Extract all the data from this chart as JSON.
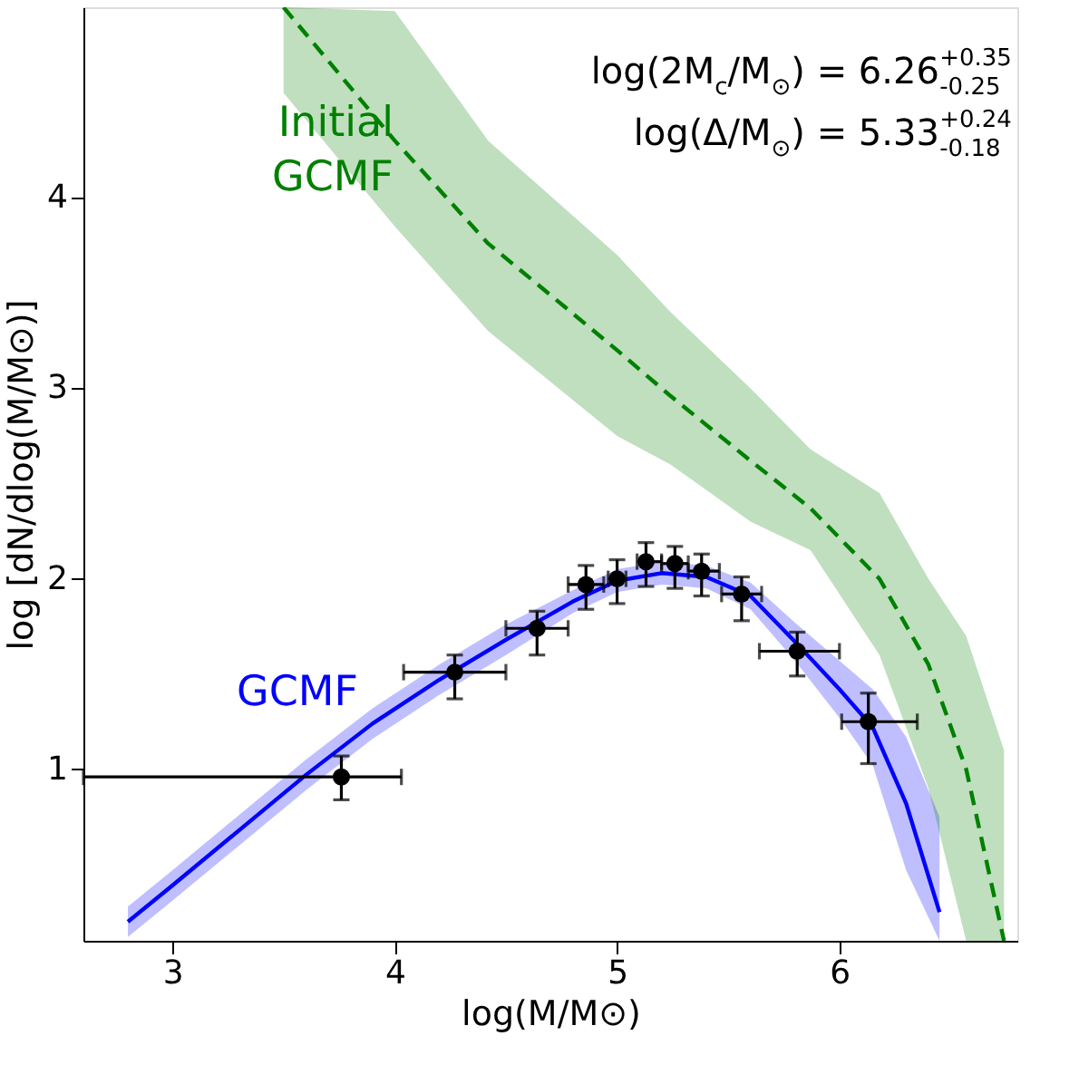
{
  "chart_data": {
    "type": "line",
    "xlabel": "log(M/M⊙)",
    "ylabel": "log [dN/dlog(M/M⊙)]",
    "xlim": [
      2.6,
      6.8
    ],
    "ylim": [
      0.1,
      5.0
    ],
    "xticks": [
      3,
      4,
      5,
      6
    ],
    "yticks": [
      1,
      2,
      3,
      4
    ],
    "grid": false,
    "legend": false,
    "annotations": [
      "log(2M$_{c}$/M$_{⊙}$) = 6.26$^{+0.35}$$_{-0.25}$",
      "log(Δ/M$_{⊙}$) = 5.33$^{+0.24}$$_{-0.18}$"
    ],
    "series": [
      {
        "name": "GCMF",
        "color": "#0000ff",
        "line_style": "solid",
        "x": [
          2.8,
          3.0,
          3.3,
          3.6,
          3.9,
          4.2,
          4.5,
          4.8,
          5.0,
          5.2,
          5.4,
          5.6,
          5.8,
          6.0,
          6.15,
          6.3,
          6.45
        ],
        "values": [
          0.2,
          0.39,
          0.68,
          0.97,
          1.24,
          1.47,
          1.68,
          1.88,
          1.99,
          2.03,
          2.01,
          1.91,
          1.67,
          1.42,
          1.22,
          0.82,
          0.25
        ],
        "lower": [
          0.12,
          0.31,
          0.6,
          0.89,
          1.16,
          1.39,
          1.6,
          1.82,
          1.93,
          1.97,
          1.95,
          1.84,
          1.57,
          1.27,
          1.02,
          0.47,
          0.1
        ],
        "upper": [
          0.28,
          0.47,
          0.76,
          1.05,
          1.32,
          1.55,
          1.76,
          1.94,
          2.05,
          2.09,
          2.07,
          1.98,
          1.77,
          1.57,
          1.42,
          1.17,
          0.75
        ]
      },
      {
        "name": "Initial GCMF",
        "color": "#008000",
        "line_style": "dashed",
        "x": [
          3.5,
          4.0,
          4.42,
          5.0,
          5.24,
          5.6,
          5.87,
          6.18,
          6.4,
          6.57,
          6.74
        ],
        "values": [
          5.0,
          4.3,
          3.76,
          3.2,
          2.96,
          2.62,
          2.37,
          2.0,
          1.55,
          1.0,
          0.1
        ],
        "lower": [
          4.55,
          3.85,
          3.3,
          2.75,
          2.6,
          2.3,
          2.15,
          1.6,
          0.9,
          0.1,
          0.1
        ],
        "upper": [
          5.0,
          4.98,
          4.3,
          3.7,
          3.4,
          3.0,
          2.68,
          2.45,
          2.0,
          1.7,
          1.1
        ]
      },
      {
        "type": "scatter",
        "color": "#000000",
        "marker": "circle",
        "x": [
          3.76,
          4.27,
          4.64,
          4.86,
          5.0,
          5.13,
          5.26,
          5.38,
          5.56,
          5.81,
          6.13
        ],
        "values": [
          0.96,
          1.51,
          1.74,
          1.97,
          2.0,
          2.09,
          2.08,
          2.04,
          1.92,
          1.62,
          1.25
        ],
        "errors": [
          [
            0.84,
            1.07
          ],
          [
            1.37,
            1.6
          ],
          [
            1.6,
            1.83
          ],
          [
            1.84,
            2.07
          ],
          [
            1.87,
            2.1
          ],
          [
            1.96,
            2.19
          ],
          [
            1.95,
            2.17
          ],
          [
            1.91,
            2.13
          ],
          [
            1.78,
            2.01
          ],
          [
            1.49,
            1.72
          ],
          [
            1.03,
            1.4
          ]
        ],
        "xerrors": [
          [
            2.6,
            4.03
          ],
          [
            4.04,
            4.5
          ],
          [
            4.5,
            4.78
          ],
          [
            4.78,
            4.94
          ],
          [
            4.96,
            5.04
          ],
          [
            5.09,
            5.2
          ],
          [
            5.2,
            5.32
          ],
          [
            5.32,
            5.46
          ],
          [
            5.47,
            5.65
          ],
          [
            5.64,
            6.0
          ],
          [
            6.01,
            6.35
          ]
        ]
      }
    ]
  }
}
